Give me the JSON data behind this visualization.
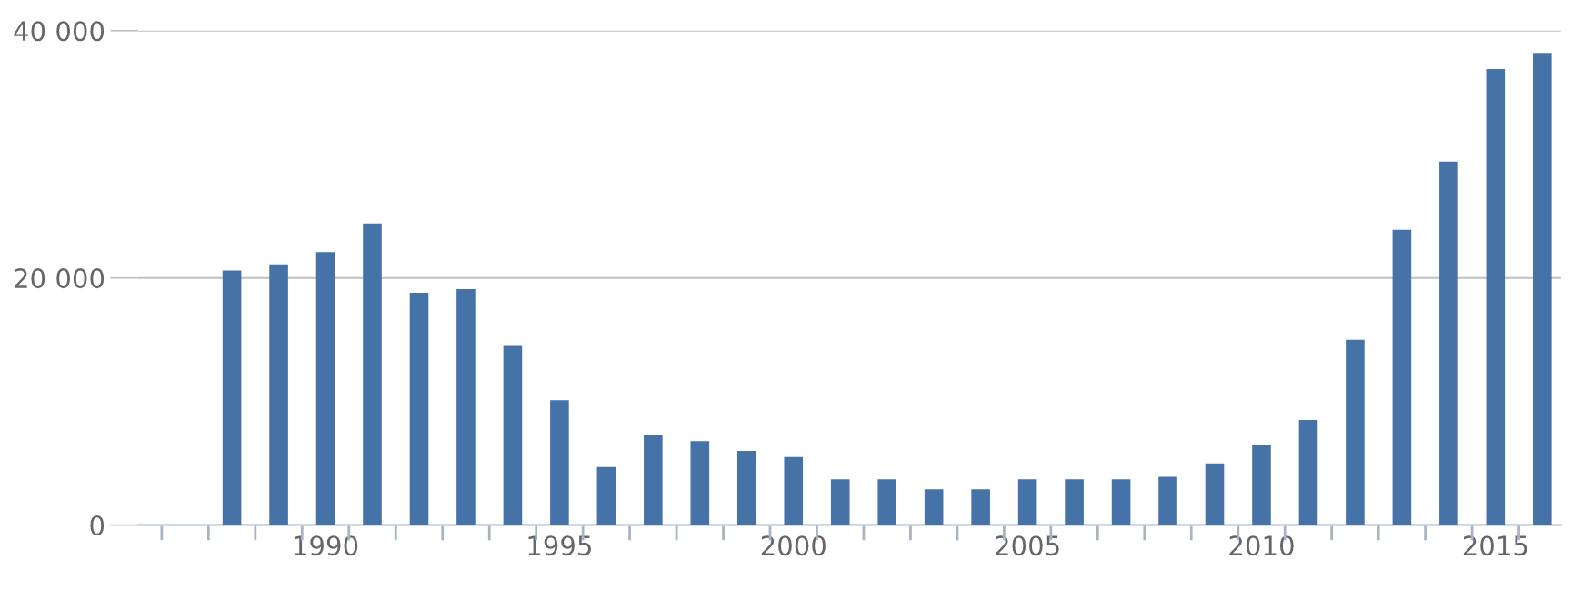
{
  "chart_data": {
    "type": "bar",
    "categories": [
      null,
      null,
      null,
      null,
      "1990",
      null,
      null,
      null,
      null,
      "1995",
      null,
      null,
      null,
      null,
      "2000",
      null,
      null,
      null,
      null,
      "2005",
      null,
      null,
      null,
      null,
      "2010",
      null,
      null,
      null,
      null,
      "2015",
      null
    ],
    "values": [
      null,
      null,
      20600,
      21100,
      22100,
      24400,
      18800,
      19100,
      14500,
      10100,
      4700,
      7300,
      6800,
      6000,
      5500,
      3700,
      3700,
      2900,
      2900,
      3700,
      3700,
      3700,
      3900,
      5000,
      6500,
      8500,
      15000,
      23900,
      29400,
      36900,
      38200
    ],
    "color": "#4572a7",
    "ylim": [
      0,
      40000
    ],
    "yticks": [
      {
        "value": 0,
        "label": "0"
      },
      {
        "value": 20000,
        "label": "20 000"
      },
      {
        "value": 40000,
        "label": "40 000"
      }
    ],
    "grid": "y"
  }
}
